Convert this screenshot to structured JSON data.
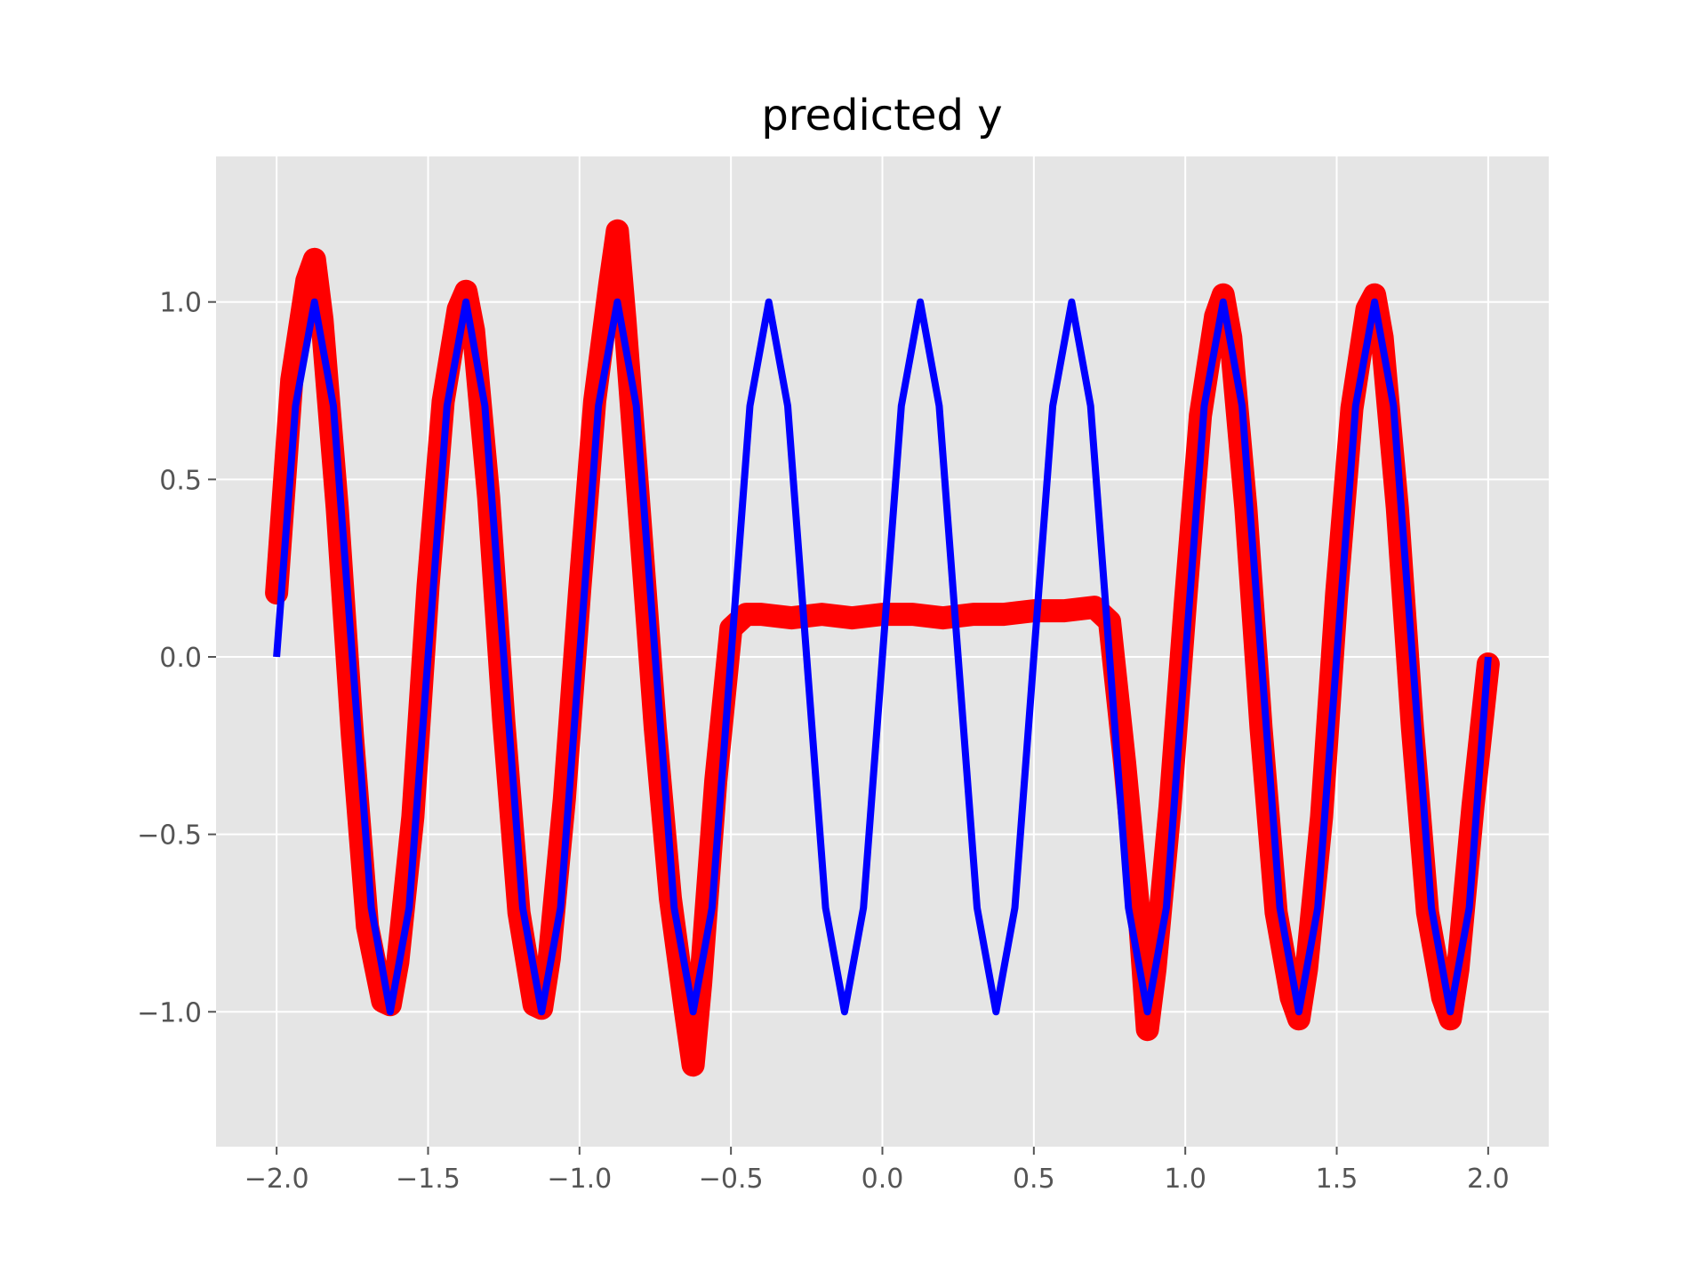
{
  "chart_data": {
    "type": "scatter",
    "title": "predicted y",
    "xlabel": "",
    "ylabel": "",
    "xlim": [
      -2.2,
      2.2
    ],
    "ylim": [
      -1.38,
      1.41
    ],
    "grid": true,
    "style": "ggplot",
    "colors": {
      "background": "#E5E5E5",
      "grid": "#FFFFFF",
      "prediction": "#FF0000",
      "truth": "#0000FF",
      "tick": "#555555"
    },
    "x_ticks": [
      {
        "value": -2.0,
        "label": "−2.0"
      },
      {
        "value": -1.5,
        "label": "−1.5"
      },
      {
        "value": -1.0,
        "label": "−1.0"
      },
      {
        "value": -0.5,
        "label": "−0.5"
      },
      {
        "value": 0.0,
        "label": "0.0"
      },
      {
        "value": 0.5,
        "label": "0.5"
      },
      {
        "value": 1.0,
        "label": "1.0"
      },
      {
        "value": 1.5,
        "label": "1.5"
      },
      {
        "value": 2.0,
        "label": "2.0"
      }
    ],
    "y_ticks": [
      {
        "value": -1.0,
        "label": "−1.0"
      },
      {
        "value": -0.5,
        "label": "−0.5"
      },
      {
        "value": 0.0,
        "label": "0.0"
      },
      {
        "value": 0.5,
        "label": "0.5"
      },
      {
        "value": 1.0,
        "label": "1.0"
      }
    ],
    "series": [
      {
        "kind": "scatter",
        "color": "#FF0000",
        "x": [
          -2.0,
          -1.95,
          -1.9,
          -1.875,
          -1.85,
          -1.8,
          -1.75,
          -1.7,
          -1.65,
          -1.625,
          -1.6,
          -1.55,
          -1.5,
          -1.45,
          -1.4,
          -1.375,
          -1.35,
          -1.3,
          -1.25,
          -1.2,
          -1.15,
          -1.125,
          -1.1,
          -1.05,
          -1.0,
          -0.95,
          -0.9,
          -0.875,
          -0.85,
          -0.8,
          -0.75,
          -0.7,
          -0.65,
          -0.625,
          -0.6,
          -0.55,
          -0.5,
          -0.45,
          -0.4,
          -0.3,
          -0.2,
          -0.1,
          0.0,
          0.1,
          0.2,
          0.3,
          0.4,
          0.5,
          0.6,
          0.7,
          0.75,
          0.8,
          0.85,
          0.875,
          0.9,
          0.95,
          1.0,
          1.05,
          1.1,
          1.125,
          1.15,
          1.2,
          1.25,
          1.3,
          1.35,
          1.375,
          1.4,
          1.45,
          1.5,
          1.55,
          1.6,
          1.625,
          1.65,
          1.7,
          1.75,
          1.8,
          1.85,
          1.875,
          1.9,
          1.95,
          2.0
        ],
        "y": [
          0.18,
          0.78,
          1.06,
          1.12,
          0.95,
          0.42,
          -0.22,
          -0.76,
          -0.97,
          -0.98,
          -0.86,
          -0.45,
          0.2,
          0.72,
          0.98,
          1.03,
          0.92,
          0.45,
          -0.18,
          -0.72,
          -0.98,
          -0.99,
          -0.85,
          -0.4,
          0.18,
          0.72,
          1.05,
          1.2,
          0.95,
          0.38,
          -0.2,
          -0.68,
          -1.0,
          -1.15,
          -0.92,
          -0.35,
          0.08,
          0.12,
          0.12,
          0.11,
          0.12,
          0.11,
          0.12,
          0.12,
          0.11,
          0.12,
          0.12,
          0.13,
          0.13,
          0.14,
          0.1,
          -0.3,
          -0.75,
          -1.05,
          -0.88,
          -0.42,
          0.15,
          0.68,
          0.96,
          1.02,
          0.9,
          0.42,
          -0.2,
          -0.72,
          -0.96,
          -1.02,
          -0.88,
          -0.45,
          0.18,
          0.7,
          0.98,
          1.02,
          0.9,
          0.42,
          -0.2,
          -0.72,
          -0.96,
          -1.02,
          -0.88,
          -0.42,
          -0.02
        ]
      },
      {
        "kind": "line",
        "color": "#0000FF",
        "x": [
          -2.0,
          -1.9375,
          -1.875,
          -1.8125,
          -1.75,
          -1.6875,
          -1.625,
          -1.5625,
          -1.5,
          -1.4375,
          -1.375,
          -1.3125,
          -1.25,
          -1.1875,
          -1.125,
          -1.0625,
          -1.0,
          -0.9375,
          -0.875,
          -0.8125,
          -0.75,
          -0.6875,
          -0.625,
          -0.5625,
          -0.5,
          -0.4375,
          -0.375,
          -0.3125,
          -0.25,
          -0.1875,
          -0.125,
          -0.0625,
          0.0,
          0.0625,
          0.125,
          0.1875,
          0.25,
          0.3125,
          0.375,
          0.4375,
          0.5,
          0.5625,
          0.625,
          0.6875,
          0.75,
          0.8125,
          0.875,
          0.9375,
          1.0,
          1.0625,
          1.125,
          1.1875,
          1.25,
          1.3125,
          1.375,
          1.4375,
          1.5,
          1.5625,
          1.625,
          1.6875,
          1.75,
          1.8125,
          1.875,
          1.9375,
          2.0
        ],
        "y": [
          0.0,
          0.707,
          1.0,
          0.707,
          0.0,
          -0.707,
          -1.0,
          -0.707,
          0.0,
          0.707,
          1.0,
          0.707,
          0.0,
          -0.707,
          -1.0,
          -0.707,
          0.0,
          0.707,
          1.0,
          0.707,
          0.0,
          -0.707,
          -1.0,
          -0.707,
          0.0,
          0.707,
          1.0,
          0.707,
          0.0,
          -0.707,
          -1.0,
          -0.707,
          0.0,
          0.707,
          1.0,
          0.707,
          0.0,
          -0.707,
          -1.0,
          -0.707,
          0.0,
          0.707,
          1.0,
          0.707,
          0.0,
          -0.707,
          -1.0,
          -0.707,
          0.0,
          0.707,
          1.0,
          0.707,
          0.0,
          -0.707,
          -1.0,
          -0.707,
          0.0,
          0.707,
          1.0,
          0.707,
          0.0,
          -0.707,
          -1.0,
          -0.707,
          0.0
        ]
      }
    ]
  }
}
